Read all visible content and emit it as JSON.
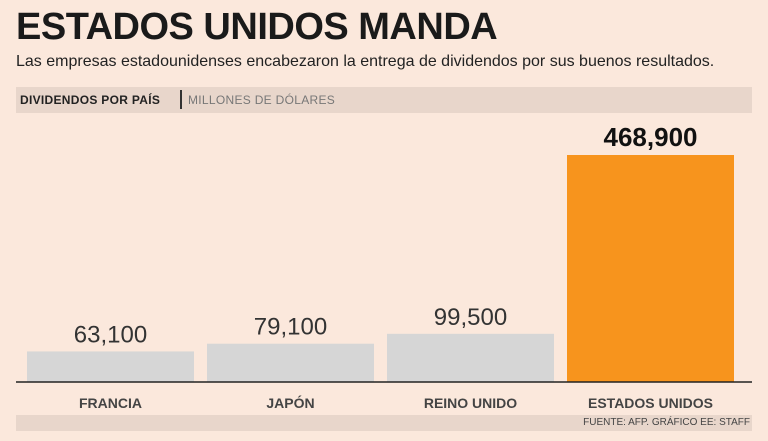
{
  "header": {
    "title": "ESTADOS UNIDOS MANDA",
    "subtitle": "Las empresas estadounidenses encabezaron la entrega de dividendos por sus buenos resultados.",
    "chart_label": "DIVIDENDOS POR PAÍS",
    "chart_units": "MILLONES DE DÓLARES"
  },
  "footer": {
    "source": "FUENTE: AFP. GRÁFICO EE: STAFF"
  },
  "colors": {
    "background": "#fbe8dc",
    "bar_default": "#d6d6d6",
    "bar_highlight": "#f7941d"
  },
  "chart_data": {
    "type": "bar",
    "title": "DIVIDENDOS POR PAÍS",
    "ylabel": "MILLONES DE DÓLARES",
    "xlabel": "",
    "categories": [
      "FRANCIA",
      "JAPÓN",
      "REINO UNIDO",
      "ESTADOS UNIDOS"
    ],
    "values": [
      63100,
      79100,
      99500,
      468900
    ],
    "value_labels": [
      "63,100",
      "79,100",
      "99,500",
      "468,900"
    ],
    "highlight": [
      false,
      false,
      false,
      true
    ],
    "ylim": [
      0,
      500000
    ],
    "grid": false
  }
}
